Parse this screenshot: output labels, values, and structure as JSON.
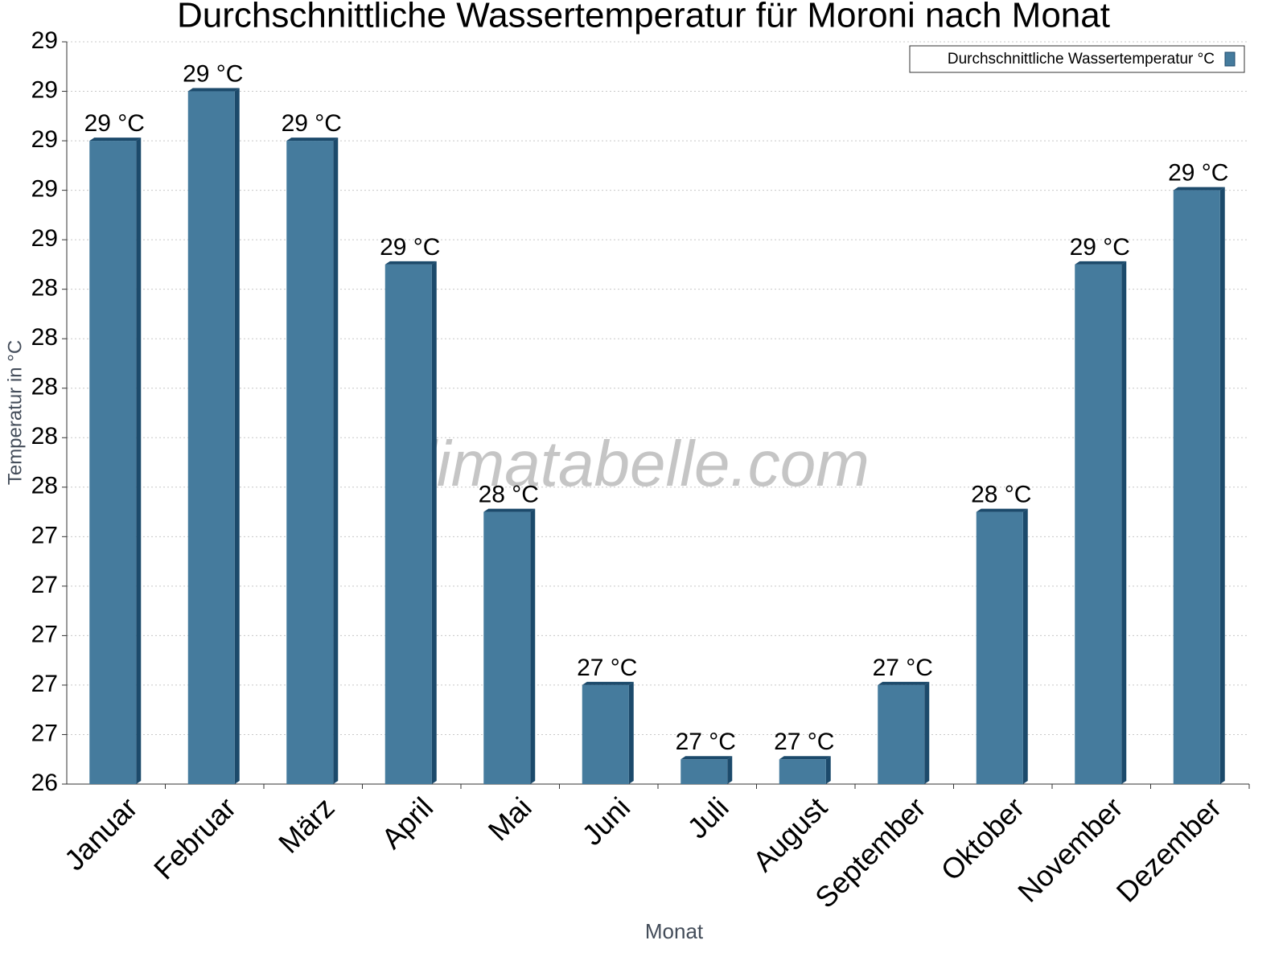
{
  "chart_data": {
    "type": "bar",
    "title": "Durchschnittliche Wassertemperatur für Moroni nach Monat",
    "x_label": "Monat",
    "y_label": "Temperatur in °C",
    "watermark": "klimatabelle.com",
    "categories": [
      "Januar",
      "Februar",
      "März",
      "April",
      "Mai",
      "Juni",
      "Juli",
      "August",
      "September",
      "Oktober",
      "November",
      "Dezember"
    ],
    "series": [
      {
        "name": "Durchschnittliche Wassertemperatur °C",
        "color": "#457b9d",
        "values": [
          29.0,
          29.2,
          29.0,
          28.5,
          27.5,
          26.8,
          26.5,
          26.5,
          26.8,
          27.5,
          28.5,
          28.8
        ],
        "value_labels": [
          "29 °C",
          "29 °C",
          "29 °C",
          "29 °C",
          "28 °C",
          "27 °C",
          "27 °C",
          "27 °C",
          "27 °C",
          "28 °C",
          "29 °C",
          "29 °C"
        ]
      }
    ],
    "ylim": [
      26.4,
      29.4
    ],
    "yticks": [
      {
        "value": 26.4,
        "label": "26"
      },
      {
        "value": 26.6,
        "label": "27"
      },
      {
        "value": 26.8,
        "label": "27"
      },
      {
        "value": 27.0,
        "label": "27"
      },
      {
        "value": 27.2,
        "label": "27"
      },
      {
        "value": 27.4,
        "label": "27"
      },
      {
        "value": 27.6,
        "label": "28"
      },
      {
        "value": 27.8,
        "label": "28"
      },
      {
        "value": 28.0,
        "label": "28"
      },
      {
        "value": 28.2,
        "label": "28"
      },
      {
        "value": 28.4,
        "label": "28"
      },
      {
        "value": 28.6,
        "label": "29"
      },
      {
        "value": 28.8,
        "label": "29"
      },
      {
        "value": 29.0,
        "label": "29"
      },
      {
        "value": 29.2,
        "label": "29"
      },
      {
        "value": 29.4,
        "label": "29"
      }
    ],
    "grid": true,
    "legend": "top-right"
  }
}
